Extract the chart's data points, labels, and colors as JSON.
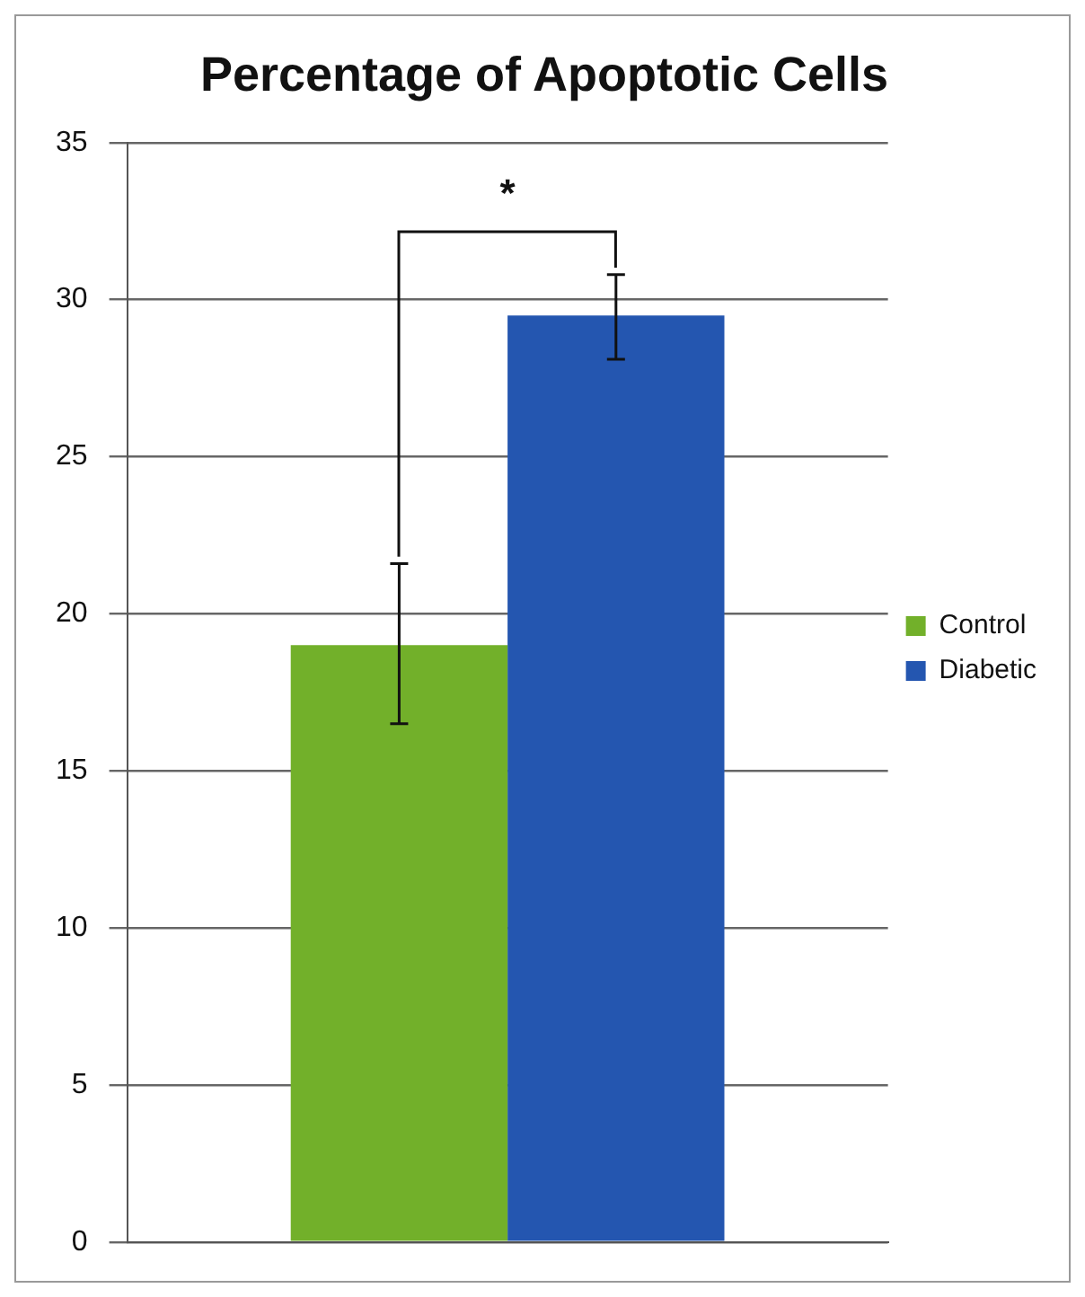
{
  "chart_data": {
    "type": "bar",
    "title": "Percentage of Apoptotic Cells",
    "categories": [
      null
    ],
    "series": [
      {
        "name": "Control",
        "color": "#72b02a",
        "values": [
          19.0
        ],
        "errors": [
          [
            16.5,
            21.6
          ]
        ]
      },
      {
        "name": "Diabetic",
        "color": "#2456b0",
        "values": [
          29.5
        ],
        "errors": [
          [
            28.1,
            30.8
          ]
        ]
      }
    ],
    "ylim": [
      0,
      35
    ],
    "yticks": [
      0,
      5,
      10,
      15,
      20,
      25,
      30,
      35
    ],
    "grid": "y",
    "legend": "right",
    "annotations": [
      "*"
    ]
  }
}
